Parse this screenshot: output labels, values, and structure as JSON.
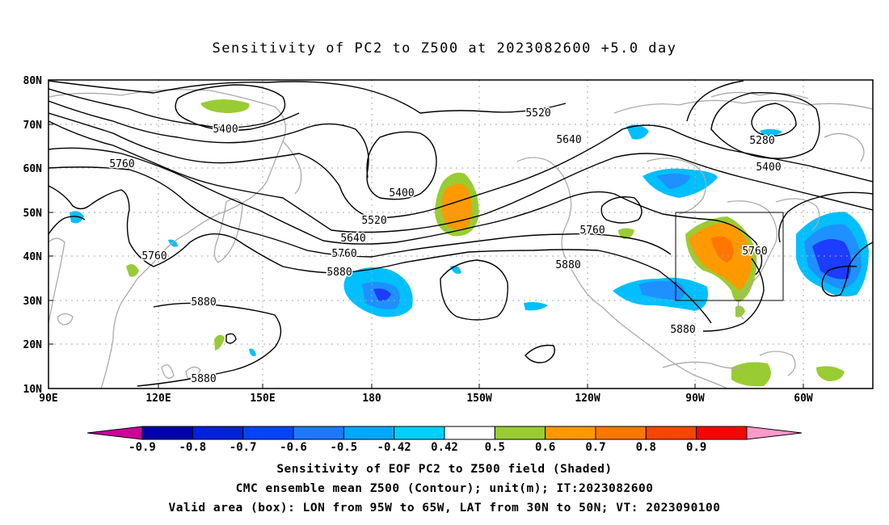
{
  "title": "Sensitivity of PC2 to Z500 at 2023082600 +5.0 day",
  "map": {
    "lat_labels": [
      "80N",
      "70N",
      "60N",
      "50N",
      "40N",
      "30N",
      "20N",
      "10N"
    ],
    "lon_labels": [
      "90E",
      "120E",
      "150E",
      "180",
      "150W",
      "120W",
      "90W",
      "60W"
    ],
    "valid_box": {
      "lon_from": "95W",
      "lon_to": "65W",
      "lat_from": "30N",
      "lat_to": "50N"
    },
    "contour_labels": [
      "5400",
      "5520",
      "5640",
      "5280",
      "5400",
      "5760",
      "5400",
      "5520",
      "5640",
      "5760",
      "5880",
      "5760",
      "5760",
      "5760",
      "5880",
      "5880",
      "5880",
      "5880"
    ],
    "colors": {
      "contour": "#000000",
      "coastline": "#aaaaaa",
      "grid": "#aaaaaa",
      "neg_light": "#00bfff",
      "neg_mid": "#1e90ff",
      "neg_dark": "#1c3cff",
      "pos_light": "#99cc33",
      "pos_mid": "#ff9900",
      "pos_dark": "#ff5500"
    }
  },
  "colorbar": {
    "labels": [
      "-0.9",
      "-0.8",
      "-0.7",
      "-0.6",
      "-0.5",
      "-0.42",
      "0.42",
      "0.5",
      "0.6",
      "0.7",
      "0.8",
      "0.9"
    ],
    "colors": [
      "#cc0099",
      "#0000aa",
      "#0022dd",
      "#0044ff",
      "#1e78ff",
      "#00a8ff",
      "#00d0ff",
      "#ffffff",
      "#99cc33",
      "#ff9900",
      "#ff7700",
      "#ff4400",
      "#ff0000",
      "#ff99cc"
    ]
  },
  "captions": [
    "Sensitivity of EOF PC2 to Z500 field (Shaded)",
    "CMC ensemble mean Z500 (Contour); unit(m); IT:2023082600",
    "Valid area (box): LON from 95W to 65W, LAT from 30N to 50N; VT: 2023090100"
  ]
}
